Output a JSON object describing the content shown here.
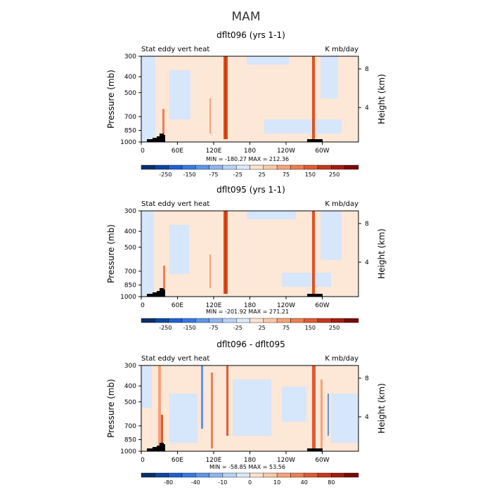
{
  "figure": {
    "title": "MAM"
  },
  "chart_data": [
    {
      "type": "heatmap",
      "title": "dflt096 (yrs 1-1)",
      "left_label": "Stat eddy vert heat",
      "right_label": "K mb/day",
      "ylabel": "Pressure (mb)",
      "ylabel_right": "Height (km)",
      "x_ticks": [
        "0",
        "60E",
        "120E",
        "180",
        "120W",
        "60W"
      ],
      "y_ticks": [
        "300",
        "400",
        "500",
        "700",
        "850",
        "1000"
      ],
      "y_ticks_right": [
        "8",
        "4"
      ],
      "stats": "MIN = -180.27   MAX = 212.36",
      "min": -180.27,
      "max": 212.36,
      "colorbar_labels": [
        "-250",
        "-150",
        "-75",
        "-25",
        "25",
        "75",
        "150",
        "250"
      ]
    },
    {
      "type": "heatmap",
      "title": "dflt095 (yrs 1-1)",
      "left_label": "Stat eddy vert heat",
      "right_label": "K mb/day",
      "ylabel": "Pressure (mb)",
      "ylabel_right": "Height (km)",
      "x_ticks": [
        "0",
        "60E",
        "120E",
        "180",
        "120W",
        "60W"
      ],
      "y_ticks": [
        "300",
        "400",
        "500",
        "700",
        "850",
        "1000"
      ],
      "y_ticks_right": [
        "8",
        "4"
      ],
      "stats": "MIN = -201.92   MAX = 271.21",
      "min": -201.92,
      "max": 271.21,
      "colorbar_labels": [
        "-250",
        "-150",
        "-75",
        "-25",
        "25",
        "75",
        "150",
        "250"
      ]
    },
    {
      "type": "heatmap",
      "title": "dflt096 - dflt095",
      "left_label": "Stat eddy vert heat",
      "right_label": "K mb/day",
      "ylabel": "Pressure (mb)",
      "ylabel_right": "Height (km)",
      "x_ticks": [
        "0",
        "60E",
        "120E",
        "180",
        "120W",
        "60W"
      ],
      "y_ticks": [
        "300",
        "400",
        "500",
        "700",
        "850",
        "1000"
      ],
      "y_ticks_right": [
        "8",
        "4"
      ],
      "stats": "MIN = -58.85   MAX = 53.56",
      "min": -58.85,
      "max": 53.56,
      "colorbar_labels": [
        "-80",
        "-40",
        "-10",
        "0",
        "10",
        "40",
        "80"
      ]
    }
  ],
  "colors": {
    "colorbar": [
      "#08306b",
      "#0d47a1",
      "#1f5fd1",
      "#3a78e0",
      "#5f95ea",
      "#8fb5f2",
      "#b9d2f6",
      "#dce9fb",
      "#fde3cf",
      "#fbc8a6",
      "#f6a37a",
      "#ee7f53",
      "#e15a32",
      "#c6371b",
      "#a21c0e",
      "#7a0a04"
    ],
    "background_fill": "#fde7d6",
    "negative_fill": "#d6e6fb",
    "strong_positive": "#e0521f",
    "strong_negative": "#3d72d8",
    "topography": "#000000"
  }
}
